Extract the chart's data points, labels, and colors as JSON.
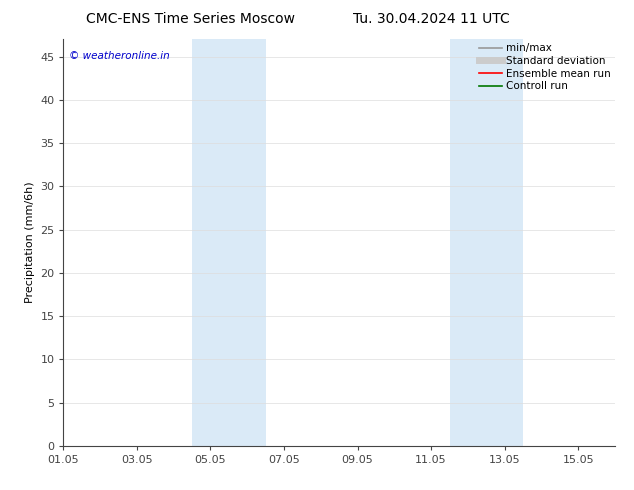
{
  "title_left": "CMC-ENS Time Series Moscow",
  "title_right": "Tu. 30.04.2024 11 UTC",
  "ylabel": "Precipitation (mm/6h)",
  "watermark": "© weatheronline.in",
  "xtick_labels": [
    "01.05",
    "03.05",
    "05.05",
    "07.05",
    "09.05",
    "11.05",
    "13.05",
    "15.05"
  ],
  "xtick_positions": [
    0,
    2,
    4,
    6,
    8,
    10,
    12,
    14
  ],
  "xlim": [
    0,
    15
  ],
  "ylim": [
    0,
    47
  ],
  "yticks": [
    0,
    5,
    10,
    15,
    20,
    25,
    30,
    35,
    40,
    45
  ],
  "shaded_regions": [
    {
      "xmin": 3.5,
      "xmax": 5.5
    },
    {
      "xmin": 10.5,
      "xmax": 12.5
    }
  ],
  "shade_color": "#daeaf7",
  "background_color": "#ffffff",
  "legend_entries": [
    {
      "label": "min/max",
      "color": "#999999",
      "lw": 1.2
    },
    {
      "label": "Standard deviation",
      "color": "#cccccc",
      "lw": 5.0
    },
    {
      "label": "Ensemble mean run",
      "color": "#ff0000",
      "lw": 1.2
    },
    {
      "label": "Controll run",
      "color": "#007700",
      "lw": 1.2
    }
  ],
  "watermark_color": "#0000cc",
  "title_fontsize": 10,
  "axis_label_fontsize": 8,
  "tick_fontsize": 8,
  "legend_fontsize": 7.5,
  "grid_color": "#dddddd",
  "spine_color": "#444444"
}
